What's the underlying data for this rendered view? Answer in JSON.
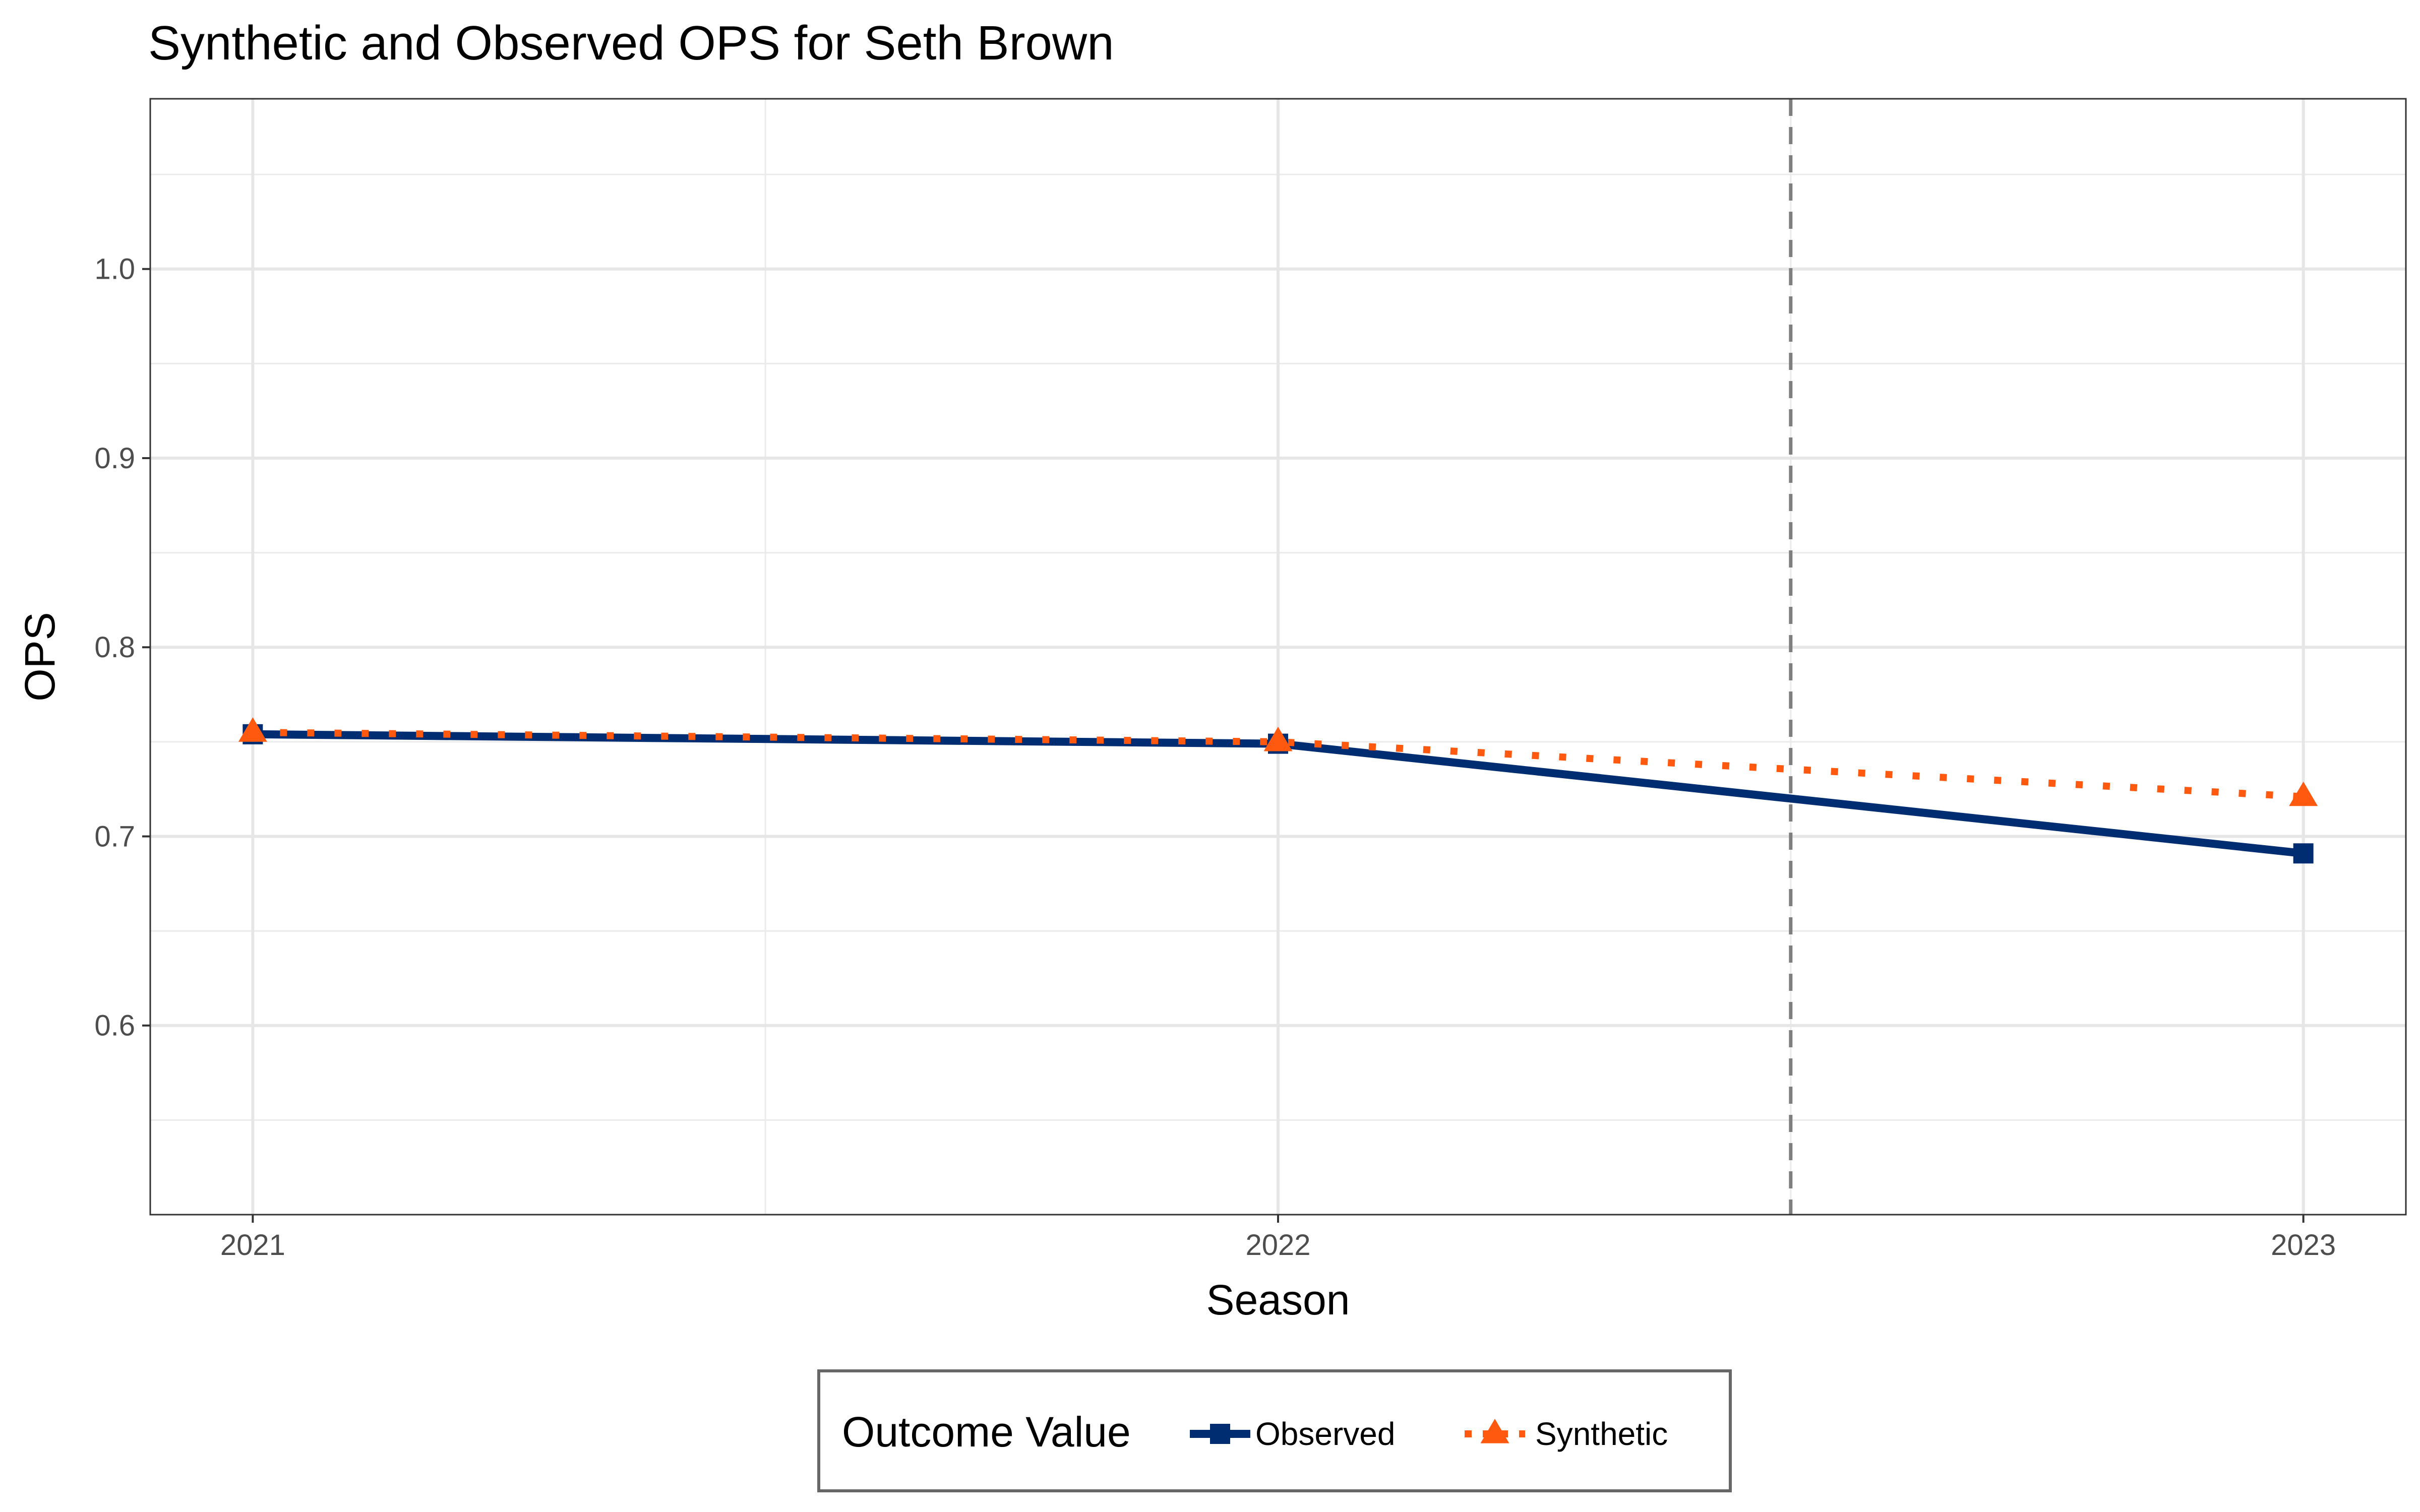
{
  "chart_data": {
    "type": "line",
    "title": "Synthetic and Observed OPS for Seth Brown",
    "xlabel": "Season",
    "ylabel": "OPS",
    "x": [
      2021,
      2022,
      2023
    ],
    "x_tick_labels": [
      "2021",
      "2022",
      "2023"
    ],
    "y_tick_labels": [
      "0.6",
      "0.7",
      "0.8",
      "0.9",
      "1.0"
    ],
    "y_ticks": [
      0.6,
      0.7,
      0.8,
      0.9,
      1.0
    ],
    "xlim": [
      2020.9,
      2023.1
    ],
    "ylim": [
      0.5,
      1.09
    ],
    "grid": true,
    "reference_line": {
      "x": 2022.5,
      "style": "dashed",
      "color": "#7f7f7f"
    },
    "series": [
      {
        "name": "Observed",
        "values": [
          0.754,
          0.749,
          0.691
        ],
        "color": "#002d72",
        "line_style": "solid",
        "marker": "square"
      },
      {
        "name": "Synthetic",
        "values": [
          0.755,
          0.75,
          0.721
        ],
        "color": "#ff5910",
        "line_style": "dotted",
        "marker": "triangle"
      }
    ],
    "legend": {
      "title": "Outcome Value",
      "placement": "bottom"
    }
  }
}
